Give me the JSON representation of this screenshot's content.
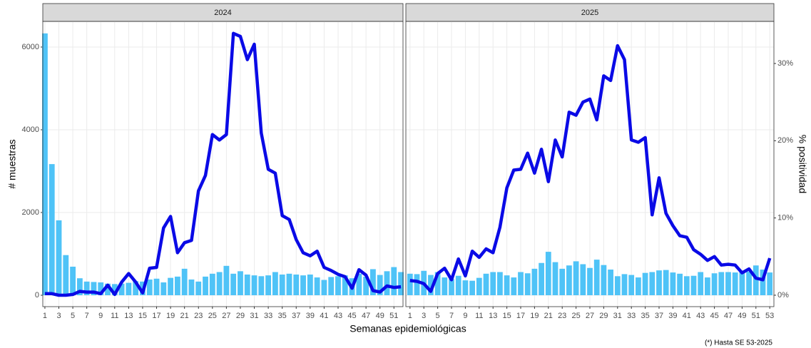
{
  "chart_data": [
    {
      "type": "bar_line",
      "title": "2024",
      "x_label": "Semanas epidemiológicas",
      "y_label": "# muestras",
      "x": [
        1,
        2,
        3,
        4,
        5,
        6,
        7,
        8,
        9,
        10,
        11,
        12,
        13,
        14,
        15,
        16,
        17,
        18,
        19,
        20,
        21,
        22,
        23,
        24,
        25,
        26,
        27,
        28,
        29,
        30,
        31,
        32,
        33,
        34,
        35,
        36,
        37,
        38,
        39,
        40,
        41,
        42,
        43,
        44,
        45,
        46,
        47,
        48,
        49,
        50,
        51,
        52
      ],
      "series": [
        {
          "color": "#4fc3f7",
          "values": [
            6330,
            3170,
            1810,
            970,
            690,
            410,
            330,
            320,
            310,
            280,
            270,
            280,
            300,
            340,
            330,
            380,
            400,
            310,
            420,
            450,
            640,
            380,
            330,
            450,
            520,
            560,
            710,
            520,
            580,
            500,
            480,
            460,
            480,
            560,
            500,
            520,
            500,
            480,
            500,
            430,
            370,
            440,
            460,
            480,
            410,
            520,
            450,
            630,
            490,
            580,
            680,
            560
          ]
        },
        {
          "color": "#0a0ae6",
          "axis": "y2",
          "values": [
            0.2,
            0.2,
            0.0,
            0.0,
            0.1,
            0.5,
            0.4,
            0.4,
            0.2,
            1.3,
            0.1,
            1.7,
            2.8,
            1.7,
            0.3,
            3.5,
            3.6,
            8.7,
            10.2,
            5.5,
            6.8,
            7.1,
            13.5,
            15.5,
            20.8,
            20.1,
            20.8,
            33.9,
            33.5,
            30.5,
            32.5,
            21.0,
            16.3,
            15.8,
            10.3,
            9.8,
            7.2,
            5.5,
            5.1,
            5.7,
            3.6,
            3.2,
            2.7,
            2.4,
            0.9,
            3.3,
            2.6,
            0.6,
            0.4,
            1.2,
            1.0,
            1.1
          ]
        }
      ],
      "xlim": [
        0.7,
        52.3
      ],
      "xticks": [
        1,
        3,
        5,
        7,
        9,
        11,
        13,
        15,
        17,
        19,
        21,
        23,
        25,
        27,
        29,
        31,
        33,
        35,
        37,
        39,
        41,
        43,
        45,
        47,
        49,
        51
      ],
      "ylim": [
        -276,
        6620
      ],
      "yticks": [
        0,
        2000,
        4000,
        6000
      ],
      "y2lim": [
        -1.48,
        35.45
      ],
      "grid": true
    },
    {
      "type": "bar_line",
      "title": "2025",
      "y2_label": "% positividad",
      "annotation": "(*) Hasta SE 53-2025",
      "x": [
        1,
        2,
        3,
        4,
        5,
        6,
        7,
        8,
        9,
        10,
        11,
        12,
        13,
        14,
        15,
        16,
        17,
        18,
        19,
        20,
        21,
        22,
        23,
        24,
        25,
        26,
        27,
        28,
        29,
        30,
        31,
        32,
        33,
        34,
        35,
        36,
        37,
        38,
        39,
        40,
        41,
        42,
        43,
        44,
        45,
        46,
        47,
        48,
        49,
        50,
        51,
        52,
        53
      ],
      "series": [
        {
          "color": "#4fc3f7",
          "values": [
            520,
            510,
            590,
            490,
            560,
            430,
            390,
            470,
            360,
            350,
            420,
            520,
            560,
            560,
            480,
            430,
            560,
            530,
            640,
            780,
            1050,
            800,
            640,
            720,
            820,
            750,
            660,
            860,
            730,
            620,
            460,
            510,
            490,
            430,
            540,
            560,
            600,
            610,
            550,
            520,
            460,
            470,
            560,
            430,
            530,
            560,
            560,
            550,
            560,
            570,
            720,
            620,
            550
          ]
        },
        {
          "color": "#0a0ae6",
          "axis": "y2",
          "values": [
            1.9,
            1.8,
            1.5,
            0.5,
            2.8,
            3.5,
            2.0,
            4.7,
            2.5,
            5.7,
            4.9,
            6.0,
            5.5,
            8.8,
            13.9,
            16.2,
            16.3,
            18.4,
            15.8,
            18.9,
            14.7,
            20.1,
            17.9,
            23.7,
            23.3,
            25.0,
            25.4,
            22.7,
            28.4,
            27.8,
            32.3,
            30.5,
            20.1,
            19.8,
            20.4,
            10.4,
            15.2,
            10.6,
            9.0,
            7.7,
            7.5,
            5.9,
            5.3,
            4.5,
            5.0,
            3.9,
            4.0,
            3.9,
            2.9,
            3.4,
            2.2,
            2.0,
            4.8
          ]
        }
      ],
      "xlim": [
        0.4,
        53.6
      ],
      "xticks": [
        1,
        3,
        5,
        7,
        9,
        11,
        13,
        15,
        17,
        19,
        21,
        23,
        25,
        27,
        29,
        31,
        33,
        35,
        37,
        39,
        41,
        43,
        45,
        47,
        49,
        51,
        53
      ],
      "ylim": [
        -276,
        6620
      ],
      "y2lim": [
        -1.48,
        35.45
      ],
      "y2ticks": [
        {
          "value": 0,
          "label": "0%"
        },
        {
          "value": 10,
          "label": "10%"
        },
        {
          "value": 20,
          "label": "20%"
        },
        {
          "value": 30,
          "label": "30%"
        }
      ],
      "grid": true
    }
  ]
}
